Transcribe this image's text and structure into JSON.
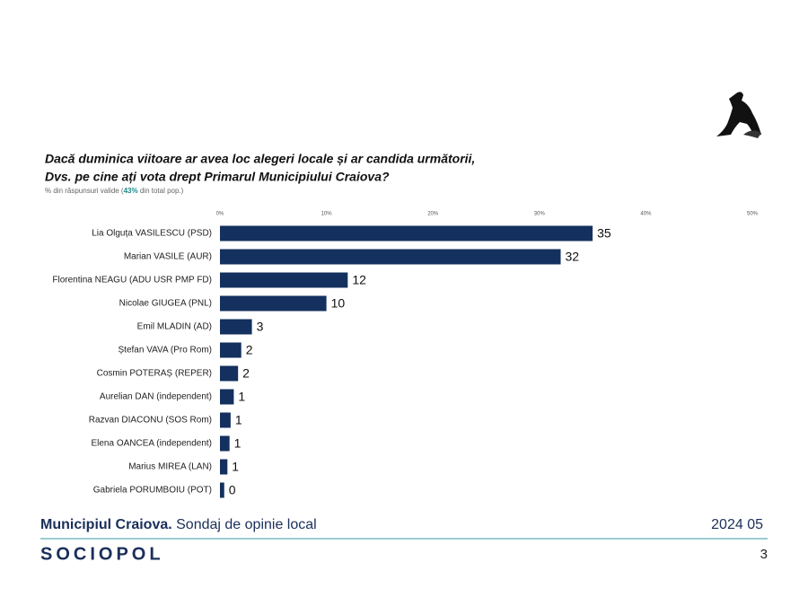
{
  "chart_data": {
    "type": "barh",
    "title": [
      "Dacă duminica viitoare ar avea loc alegeri locale și ar candida următorii,",
      "Dvs. pe cine ați vota drept Primarul Municipiului Craiova?"
    ],
    "subtitle": [
      "% din răspunsuri valide (",
      "43%",
      " din total pop.)"
    ],
    "categories": [
      "Lia Olguța VASILESCU (PSD)",
      "Marian VASILE (AUR)",
      "Florentina NEAGU (ADU USR PMP FD)",
      "Nicolae GIUGEA (PNL)",
      "Emil MLADIN (AD)",
      "Ștefan VAVA (Pro Rom)",
      "Cosmin POTERAȘ (REPER)",
      "Aurelian DAN (independent)",
      "Razvan DIACONU (SOS Rom)",
      "Elena OANCEA (independent)",
      "Marius MIREA (LAN)",
      "Gabriela PORUMBOIU (POT)"
    ],
    "values": [
      35,
      32,
      12,
      10,
      3,
      2,
      1.7,
      1.3,
      1,
      0.9,
      0.7,
      0.4
    ],
    "value_labels": [
      "35",
      "32",
      "12",
      "10",
      "3",
      "2",
      "2",
      "1",
      "1",
      "1",
      "1",
      "0"
    ],
    "color": "#14305e",
    "xlim": [
      0,
      50
    ],
    "xticks": [
      {
        "value": 0,
        "label": "0%"
      },
      {
        "value": 10,
        "label": "10%"
      },
      {
        "value": 20,
        "label": "20%"
      },
      {
        "value": 30,
        "label": "30%"
      },
      {
        "value": 40,
        "label": "40%"
      },
      {
        "value": 50,
        "label": "50%"
      }
    ]
  },
  "footer": {
    "region": "Municipiul Craiova.",
    "description": " Sondaj de opinie local",
    "date": "2024 05",
    "brand": "SOCIOPOL",
    "page": "3"
  }
}
